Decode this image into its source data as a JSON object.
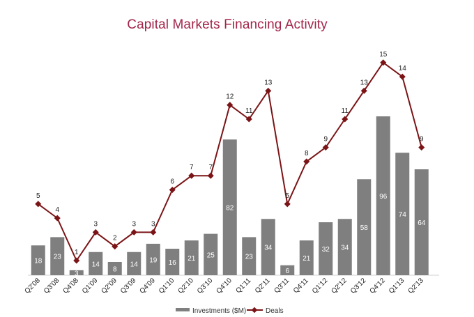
{
  "chart_data": {
    "type": "bar",
    "title": "Capital Markets Financing Activity",
    "categories": [
      "Q2'08",
      "Q3'08",
      "Q4'08",
      "Q1'09",
      "Q2'09",
      "Q3'09",
      "Q4'09",
      "Q1'10",
      "Q2'10",
      "Q3'10",
      "Q4'10",
      "Q1'11",
      "Q2'11",
      "Q3'11",
      "Q4'11",
      "Q1'12",
      "Q2'12",
      "Q3'12",
      "Q4'12",
      "Q1'13",
      "Q2'13"
    ],
    "series": [
      {
        "name": "Investments ($M)",
        "type": "bar",
        "color": "#7f7f7f",
        "values": [
          18,
          23,
          3,
          14,
          8,
          14,
          19,
          16,
          21,
          25,
          82,
          23,
          34,
          6,
          21,
          32,
          34,
          58,
          96,
          74,
          64
        ]
      },
      {
        "name": "Deals",
        "type": "line",
        "color": "#7b1416",
        "values": [
          5,
          4,
          1,
          3,
          2,
          3,
          3,
          6,
          7,
          7,
          12,
          11,
          13,
          5,
          8,
          9,
          11,
          13,
          15,
          14,
          9
        ]
      }
    ],
    "legend_position": "bottom",
    "grid": false
  }
}
